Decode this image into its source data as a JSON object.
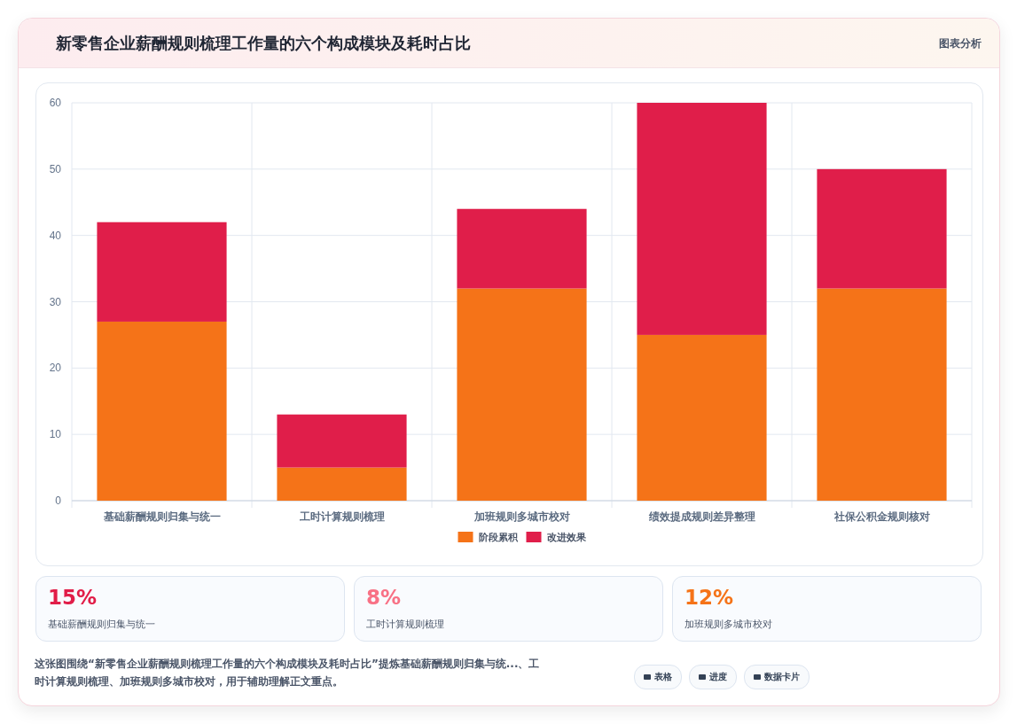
{
  "chart_data": [
    {
      "type": "bar",
      "title": "新零售企业薪酬规则梳理工作量的六个构成模块及耗时占比",
      "subtitle": "图表分析",
      "categories": [
        "基础薪酬规则归集与统一",
        "工时计算规则梳理",
        "加班规则多城市校对",
        "绩效提成规则差异整理",
        "社保公积金规则核对"
      ],
      "series": [
        {
          "name": "阶段累积",
          "color": "#f57318",
          "values": [
            27,
            5,
            32,
            25,
            32
          ]
        },
        {
          "name": "改进效果",
          "color": "#e01e4a",
          "values": [
            15,
            8,
            12,
            35,
            18
          ]
        }
      ],
      "stacked": true,
      "ylim": [
        0,
        60
      ],
      "yticks": [
        0,
        10,
        20,
        30,
        40,
        50,
        60
      ],
      "grid": true,
      "legend": "bottom"
    },
    {
      "type": "other",
      "annotations": [
        "15%",
        "基础薪酬规则归集与统一",
        "8%",
        "工时计算规则梳理",
        "12%",
        "加班规则多城市校对",
        "这张图围绕“新零售企业薪酬规则梳理工作量的六个构成模块及耗时占比”提炼基础薪酬规则归集与统...、工时计算规则梳理、加班规则多城市校对，用于辅助理解正文重点。",
        "表格",
        "进度",
        "数据卡片"
      ]
    }
  ]
}
